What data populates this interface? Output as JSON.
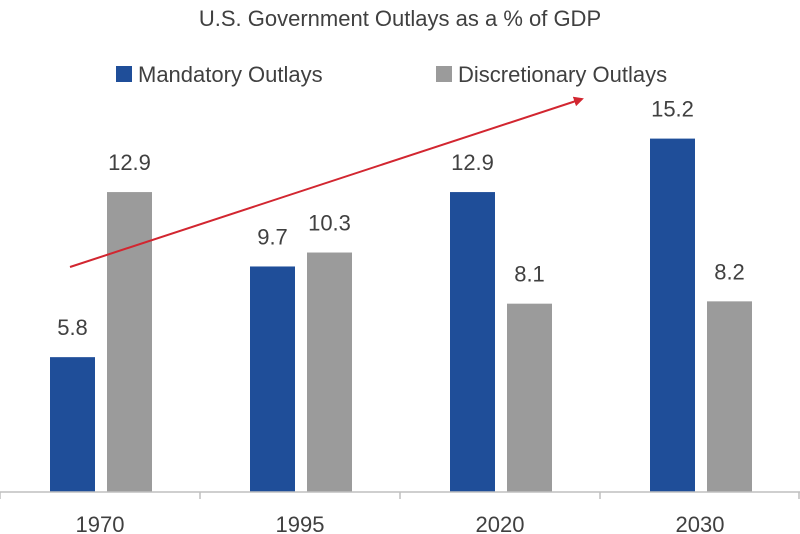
{
  "chart_data": {
    "type": "bar",
    "title": "U.S. Government Outlays as a % of GDP",
    "xlabel": "",
    "ylabel": "",
    "categories": [
      "1970",
      "1995",
      "2020",
      "2030"
    ],
    "series": [
      {
        "name": "Mandatory Outlays",
        "values": [
          5.8,
          9.7,
          12.9,
          15.2
        ],
        "labels": [
          "5.8",
          "9.7",
          "12.9",
          "15.2"
        ],
        "color": "#1f4e99"
      },
      {
        "name": "Discretionary Outlays",
        "values": [
          12.9,
          10.3,
          8.1,
          8.2
        ],
        "labels": [
          "12.9",
          "10.3",
          "8.1",
          "8.2"
        ],
        "color": "#9b9b9b"
      }
    ],
    "ylim": [
      0,
      18
    ],
    "grid": false,
    "legend_position": "top",
    "annotation": {
      "type": "trend-arrow",
      "color": "#d22630",
      "from": "1970",
      "to": "2030"
    }
  }
}
